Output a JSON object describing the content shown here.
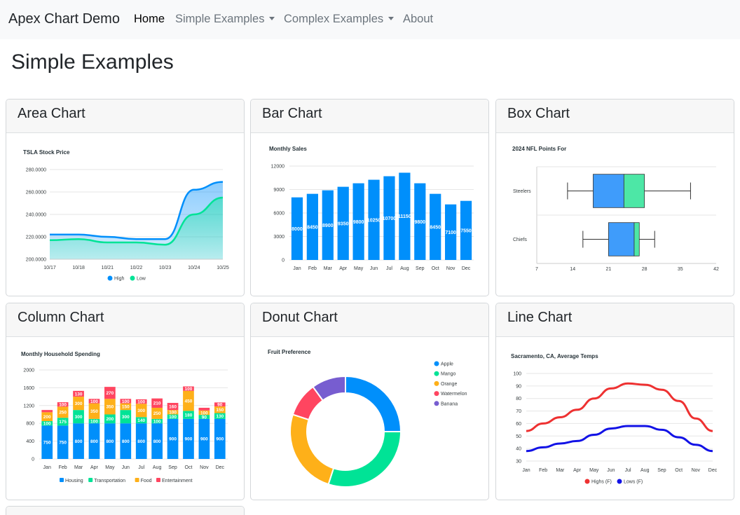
{
  "navbar": {
    "brand": "Apex Chart Demo",
    "links": [
      {
        "label": "Home",
        "active": true,
        "dropdown": false
      },
      {
        "label": "Simple Examples",
        "active": false,
        "dropdown": true
      },
      {
        "label": "Complex Examples",
        "active": false,
        "dropdown": true
      },
      {
        "label": "About",
        "active": false,
        "dropdown": false
      }
    ]
  },
  "page": {
    "title": "Simple Examples"
  },
  "cards": [
    {
      "title": "Area Chart"
    },
    {
      "title": "Bar Chart"
    },
    {
      "title": "Box Chart"
    },
    {
      "title": "Column Chart"
    },
    {
      "title": "Donut Chart"
    },
    {
      "title": "Line Chart"
    }
  ],
  "chart_data": [
    {
      "type": "area",
      "title": "TSLA Stock Price",
      "x": [
        "10/17",
        "10/18",
        "10/21",
        "10/22",
        "10/23",
        "10/24",
        "10/25"
      ],
      "series": [
        {
          "name": "High",
          "color": "#008ffb",
          "values": [
            222,
            222,
            220,
            218,
            218,
            262,
            269
          ]
        },
        {
          "name": "Low",
          "color": "#00e396",
          "values": [
            217,
            218,
            215,
            215,
            213,
            240,
            255
          ]
        }
      ],
      "ylim": [
        200,
        280
      ],
      "yticks": [
        "200.0000",
        "220.0000",
        "240.0000",
        "260.0000",
        "280.0000"
      ],
      "legend": "bottom"
    },
    {
      "type": "bar",
      "title": "Monthly Sales",
      "categories": [
        "Jan",
        "Feb",
        "Mar",
        "Apr",
        "May",
        "Jun",
        "Jul",
        "Aug",
        "Sep",
        "Oct",
        "Nov",
        "Dec"
      ],
      "values": [
        8000,
        8450,
        8900,
        9350,
        9800,
        10250,
        10700,
        11150,
        9800,
        8450,
        7100,
        7550
      ],
      "data_labels": [
        "8000",
        "8450",
        "8900",
        "9350",
        "9800",
        "10250",
        "10700",
        "11150",
        "9800",
        "8450",
        "7100",
        "7550"
      ],
      "color": "#008ffb",
      "ylim": [
        0,
        12000
      ],
      "yticks": [
        "0",
        "3000",
        "6000",
        "9000",
        "12000"
      ]
    },
    {
      "type": "boxplot",
      "title": "2024 NFL Points For",
      "categories": [
        "Steelers",
        "Chiefs"
      ],
      "boxes": [
        {
          "min": 13,
          "q1": 18,
          "median": 24,
          "q3": 28,
          "max": 37
        },
        {
          "min": 16,
          "q1": 21,
          "median": 26,
          "q3": 27,
          "max": 30
        }
      ],
      "colors": {
        "lower": "#3f9cfb",
        "upper": "#4de7a6"
      },
      "xlim": [
        7,
        42
      ],
      "xticks": [
        "7",
        "14",
        "21",
        "28",
        "35",
        "42"
      ]
    },
    {
      "type": "bar",
      "stacked": true,
      "title": "Monthly Household Spending",
      "categories": [
        "Jan",
        "Feb",
        "Mar",
        "Apr",
        "May",
        "Jun",
        "Jul",
        "Aug",
        "Sep",
        "Oct",
        "Nov",
        "Dec"
      ],
      "series": [
        {
          "name": "Housing",
          "color": "#008ffb",
          "values": [
            750,
            750,
            800,
            800,
            800,
            800,
            800,
            800,
            900,
            900,
            900,
            900
          ],
          "labels": [
            "750",
            "750",
            "800",
            "800",
            "800",
            "800",
            "800",
            "800",
            "900",
            "900",
            "900",
            "900"
          ]
        },
        {
          "name": "Transportation",
          "color": "#00e396",
          "values": [
            100,
            175,
            300,
            100,
            200,
            300,
            140,
            100,
            100,
            180,
            90,
            130
          ],
          "labels": [
            "100",
            "175",
            "300",
            "100",
            "200",
            "300",
            "140",
            "100",
            "100",
            "180",
            "90",
            "130"
          ]
        },
        {
          "name": "Food",
          "color": "#feb019",
          "values": [
            200,
            250,
            300,
            350,
            350,
            150,
            300,
            250,
            100,
            450,
            100,
            150
          ],
          "labels": [
            "200",
            "250",
            "300",
            "350",
            "350",
            "150",
            "300",
            "250",
            "100",
            "450",
            "100",
            "150"
          ]
        },
        {
          "name": "Entertainment",
          "color": "#ff4560",
          "values": [
            50,
            100,
            130,
            100,
            270,
            100,
            100,
            210,
            160,
            100,
            60,
            90
          ],
          "labels": [
            "",
            "100",
            "130",
            "100",
            "270",
            "100",
            "100",
            "210",
            "160",
            "100",
            "",
            "90"
          ]
        }
      ],
      "ylim": [
        0,
        2000
      ],
      "yticks": [
        "0",
        "400",
        "800",
        "1200",
        "1600",
        "2000"
      ],
      "legend": "bottom"
    },
    {
      "type": "pie",
      "donut": true,
      "title": "Fruit Preference",
      "labels": [
        "Apple",
        "Mango",
        "Orange",
        "Watermelon",
        "Banana"
      ],
      "values": [
        25,
        30,
        25,
        10,
        10
      ],
      "colors": [
        "#008ffb",
        "#00e396",
        "#feb019",
        "#ff4560",
        "#775dd0"
      ],
      "legend": "right"
    },
    {
      "type": "line",
      "title": "Sacramento, CA, Average Temps",
      "x": [
        "Jan",
        "Feb",
        "Mar",
        "Apr",
        "May",
        "Jun",
        "Jul",
        "Aug",
        "Sep",
        "Oct",
        "Nov",
        "Dec"
      ],
      "series": [
        {
          "name": "Highs (F)",
          "color": "#ee3131",
          "values": [
            54,
            60,
            65,
            71,
            80,
            88,
            92,
            91,
            87,
            78,
            64,
            54
          ]
        },
        {
          "name": "Lows (F)",
          "color": "#1212e6",
          "values": [
            38,
            41,
            44,
            46,
            51,
            56,
            58,
            58,
            55,
            49,
            43,
            38
          ]
        }
      ],
      "ylim": [
        30,
        100
      ],
      "yticks": [
        "30",
        "40",
        "50",
        "60",
        "70",
        "80",
        "90",
        "100"
      ],
      "legend": "bottom"
    }
  ]
}
